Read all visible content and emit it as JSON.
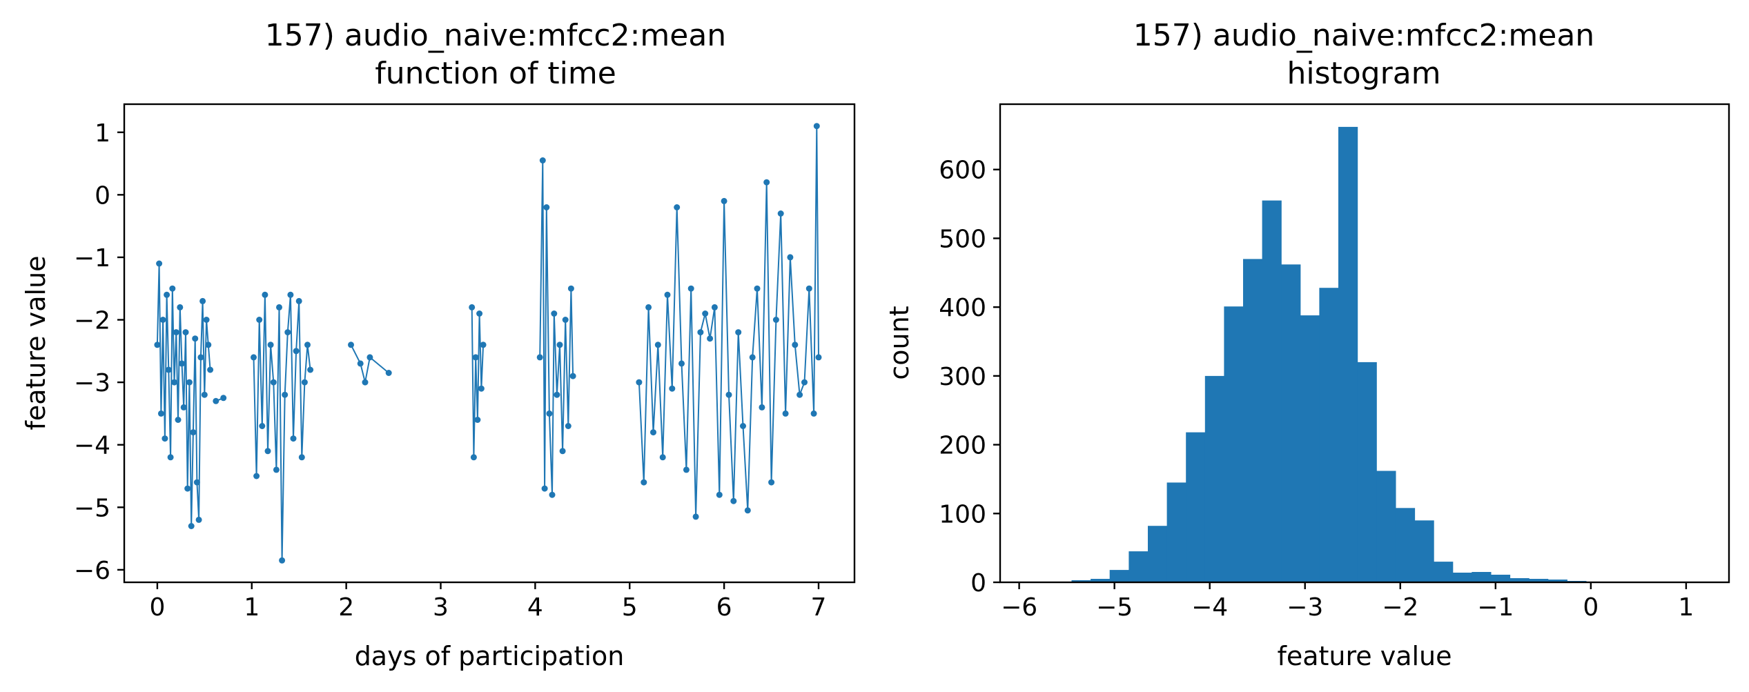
{
  "chart_data": [
    {
      "type": "line",
      "title_line1": "157) audio_naive:mfcc2:mean",
      "title_line2": "function of time",
      "xlabel": "days of participation",
      "ylabel": "feature value",
      "xlim": [
        -0.35,
        7.38
      ],
      "ylim": [
        -6.2,
        1.45
      ],
      "xticks": [
        0,
        1,
        2,
        3,
        4,
        5,
        6,
        7
      ],
      "yticks": [
        -6,
        -5,
        -4,
        -3,
        -2,
        -1,
        0,
        1
      ],
      "color": "#1f77b4",
      "markers": true,
      "segments": [
        {
          "x": [
            0.0,
            0.02,
            0.04,
            0.06,
            0.08,
            0.1,
            0.12,
            0.14,
            0.16,
            0.18,
            0.2,
            0.22,
            0.24,
            0.26,
            0.28,
            0.3,
            0.32,
            0.34,
            0.36,
            0.38,
            0.4,
            0.42,
            0.44,
            0.46,
            0.48,
            0.5,
            0.52,
            0.54,
            0.56
          ],
          "y": [
            -2.4,
            -1.1,
            -3.5,
            -2.0,
            -3.9,
            -1.6,
            -2.8,
            -4.2,
            -1.5,
            -3.0,
            -2.2,
            -3.6,
            -1.8,
            -2.7,
            -3.4,
            -2.2,
            -4.7,
            -3.0,
            -5.3,
            -3.8,
            -2.3,
            -4.6,
            -5.2,
            -2.6,
            -1.7,
            -3.2,
            -2.0,
            -2.4,
            -2.8
          ]
        },
        {
          "x": [
            0.62,
            0.7
          ],
          "y": [
            -3.3,
            -3.25
          ]
        },
        {
          "x": [
            1.02,
            1.05,
            1.08,
            1.11,
            1.14,
            1.17,
            1.2,
            1.23,
            1.26,
            1.29,
            1.32,
            1.35,
            1.38,
            1.41,
            1.44,
            1.47,
            1.5,
            1.53,
            1.56,
            1.59,
            1.62
          ],
          "y": [
            -2.6,
            -4.5,
            -2.0,
            -3.7,
            -1.6,
            -4.1,
            -2.4,
            -3.0,
            -4.4,
            -1.8,
            -5.85,
            -3.2,
            -2.2,
            -1.6,
            -3.9,
            -2.5,
            -1.7,
            -4.2,
            -3.0,
            -2.4,
            -2.8
          ]
        },
        {
          "x": [
            2.05,
            2.15,
            2.2,
            2.25,
            2.45
          ],
          "y": [
            -2.4,
            -2.7,
            -3.0,
            -2.6,
            -2.85
          ]
        },
        {
          "x": [
            3.33,
            3.35,
            3.37,
            3.39,
            3.41,
            3.43,
            3.45
          ],
          "y": [
            -1.8,
            -4.2,
            -2.6,
            -3.6,
            -1.9,
            -3.1,
            -2.4
          ]
        },
        {
          "x": [
            4.05,
            4.08,
            4.1,
            4.12,
            4.15,
            4.18,
            4.2,
            4.23,
            4.26,
            4.29,
            4.32,
            4.35,
            4.38,
            4.4
          ],
          "y": [
            -2.6,
            0.55,
            -4.7,
            -0.2,
            -3.5,
            -4.8,
            -1.9,
            -3.2,
            -2.4,
            -4.1,
            -2.0,
            -3.7,
            -1.5,
            -2.9
          ]
        },
        {
          "x": [
            5.1,
            5.15,
            5.2,
            5.25,
            5.3,
            5.35,
            5.4,
            5.45,
            5.5,
            5.55,
            5.6,
            5.65,
            5.7,
            5.75,
            5.8,
            5.85,
            5.9,
            5.95,
            6.0,
            6.05,
            6.1,
            6.15,
            6.2,
            6.25,
            6.3,
            6.35,
            6.4,
            6.45,
            6.5,
            6.55,
            6.6,
            6.65,
            6.7,
            6.75,
            6.8,
            6.85,
            6.9,
            6.95,
            6.98,
            7.0
          ],
          "y": [
            -3.0,
            -4.6,
            -1.8,
            -3.8,
            -2.4,
            -4.2,
            -1.6,
            -3.1,
            -0.2,
            -2.7,
            -4.4,
            -1.5,
            -5.15,
            -2.2,
            -1.9,
            -2.3,
            -1.8,
            -4.8,
            -0.1,
            -3.2,
            -4.9,
            -2.2,
            -3.7,
            -5.05,
            -2.6,
            -1.5,
            -3.4,
            0.2,
            -4.6,
            -2.0,
            -0.3,
            -3.5,
            -1.0,
            -2.4,
            -3.2,
            -3.0,
            -1.5,
            -3.5,
            1.1,
            -2.6
          ]
        }
      ]
    },
    {
      "type": "bar",
      "title_line1": "157) audio_naive:mfcc2:mean",
      "title_line2": "histogram",
      "xlabel": "feature value",
      "ylabel": "count",
      "xlim": [
        -6.2,
        1.45
      ],
      "ylim": [
        0,
        695
      ],
      "xticks": [
        -6,
        -5,
        -4,
        -3,
        -2,
        -1,
        0,
        1
      ],
      "yticks": [
        0,
        100,
        200,
        300,
        400,
        500,
        600
      ],
      "color": "#1f77b4",
      "bin_start": -5.85,
      "bin_width": 0.2,
      "counts": [
        1,
        1,
        3,
        5,
        18,
        45,
        82,
        145,
        218,
        300,
        401,
        470,
        555,
        462,
        388,
        428,
        662,
        320,
        162,
        108,
        90,
        30,
        14,
        15,
        11,
        6,
        5,
        4,
        2,
        1,
        1,
        1
      ]
    }
  ]
}
